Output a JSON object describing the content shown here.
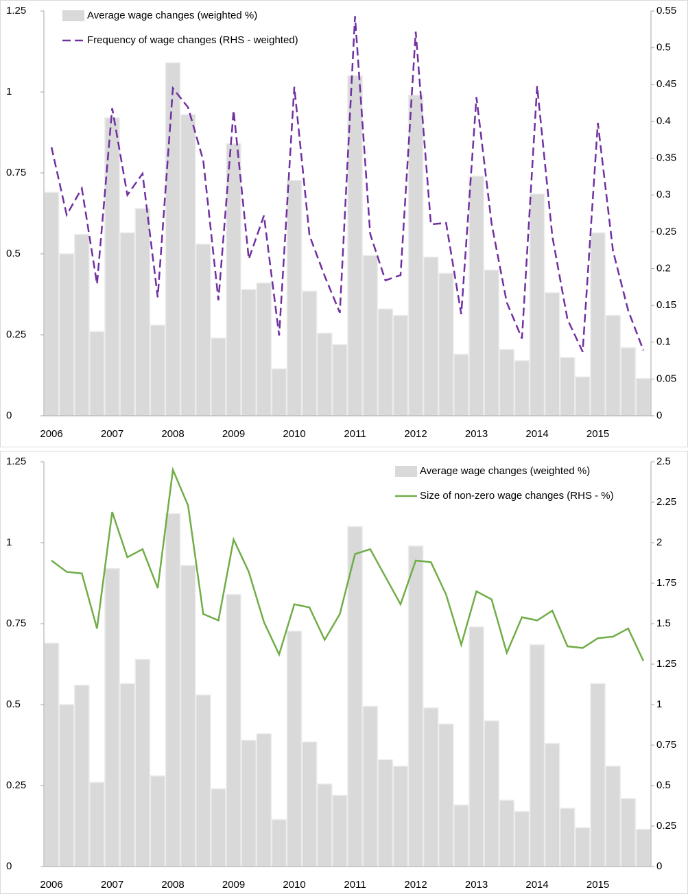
{
  "chart_data": [
    {
      "type": "bar-line",
      "categories": [
        "2006",
        null,
        null,
        null,
        "2007",
        null,
        null,
        null,
        "2008",
        null,
        null,
        null,
        "2009",
        null,
        null,
        null,
        "2010",
        null,
        null,
        null,
        "2011",
        null,
        null,
        null,
        "2012",
        null,
        null,
        null,
        "2013",
        null,
        null,
        null,
        "2014",
        null,
        null,
        null,
        "2015",
        null,
        null,
        null
      ],
      "series": [
        {
          "name": "Average wage changes (weighted %)",
          "kind": "bar",
          "color": "#d9d9d9",
          "values": [
            0.69,
            0.5,
            0.56,
            0.26,
            0.92,
            0.565,
            0.64,
            0.28,
            1.09,
            0.93,
            0.53,
            0.24,
            0.84,
            0.39,
            0.41,
            0.145,
            0.727,
            0.385,
            0.255,
            0.22,
            1.05,
            0.495,
            0.33,
            0.31,
            0.99,
            0.49,
            0.44,
            0.19,
            0.74,
            0.45,
            0.205,
            0.17,
            0.685,
            0.38,
            0.18,
            0.12,
            0.565,
            0.31,
            0.21,
            0.115
          ]
        },
        {
          "name": "Frequency of wage changes (RHS - weighted)",
          "kind": "line",
          "axis": "y2",
          "color": "#7030a0",
          "style": "dashed",
          "values": [
            0.365,
            0.273,
            0.309,
            0.179,
            0.418,
            0.3,
            0.329,
            0.161,
            0.445,
            0.419,
            0.347,
            0.157,
            0.415,
            0.213,
            0.272,
            0.109,
            0.447,
            0.245,
            0.19,
            0.14,
            0.543,
            0.247,
            0.184,
            0.191,
            0.522,
            0.26,
            0.262,
            0.138,
            0.433,
            0.261,
            0.154,
            0.105,
            0.448,
            0.244,
            0.131,
            0.087,
            0.398,
            0.224,
            0.143,
            0.089
          ]
        }
      ],
      "ylim": [
        0,
        1.25
      ],
      "yticks": [
        0,
        0.25,
        0.5,
        0.75,
        1,
        1.25
      ],
      "y2lim": [
        0,
        0.55
      ],
      "y2ticks": [
        0,
        0.05,
        0.1,
        0.15,
        0.2,
        0.25,
        0.3,
        0.35,
        0.4,
        0.45,
        0.5,
        0.55
      ],
      "legend": "upper left"
    },
    {
      "type": "bar-line",
      "categories": [
        "2006",
        null,
        null,
        null,
        "2007",
        null,
        null,
        null,
        "2008",
        null,
        null,
        null,
        "2009",
        null,
        null,
        null,
        "2010",
        null,
        null,
        null,
        "2011",
        null,
        null,
        null,
        "2012",
        null,
        null,
        null,
        "2013",
        null,
        null,
        null,
        "2014",
        null,
        null,
        null,
        "2015",
        null,
        null,
        null
      ],
      "series": [
        {
          "name": "Average wage changes (weighted %)",
          "kind": "bar",
          "color": "#d9d9d9",
          "values": [
            0.69,
            0.5,
            0.56,
            0.26,
            0.92,
            0.565,
            0.64,
            0.28,
            1.09,
            0.93,
            0.53,
            0.24,
            0.84,
            0.39,
            0.41,
            0.145,
            0.727,
            0.385,
            0.255,
            0.22,
            1.05,
            0.495,
            0.33,
            0.31,
            0.99,
            0.49,
            0.44,
            0.19,
            0.74,
            0.45,
            0.205,
            0.17,
            0.685,
            0.38,
            0.18,
            0.12,
            0.565,
            0.31,
            0.21,
            0.115
          ]
        },
        {
          "name": "Size of non-zero wage changes (RHS - %)",
          "kind": "line",
          "axis": "y2",
          "color": "#70ad47",
          "style": "solid",
          "values": [
            1.89,
            1.82,
            1.81,
            1.47,
            2.19,
            1.91,
            1.96,
            1.72,
            2.45,
            2.23,
            1.56,
            1.52,
            2.02,
            1.82,
            1.51,
            1.31,
            1.62,
            1.6,
            1.4,
            1.56,
            1.93,
            1.96,
            1.79,
            1.62,
            1.89,
            1.88,
            1.68,
            1.37,
            1.7,
            1.65,
            1.32,
            1.54,
            1.52,
            1.58,
            1.36,
            1.35,
            1.41,
            1.42,
            1.47,
            1.27
          ]
        }
      ],
      "ylim": [
        0,
        1.25
      ],
      "yticks": [
        0,
        0.25,
        0.5,
        0.75,
        1,
        1.25
      ],
      "y2lim": [
        0,
        2.5
      ],
      "y2ticks": [
        0,
        0.25,
        0.5,
        0.75,
        1,
        1.25,
        1.5,
        1.75,
        2,
        2.25,
        2.5
      ],
      "legend": "upper right"
    }
  ]
}
